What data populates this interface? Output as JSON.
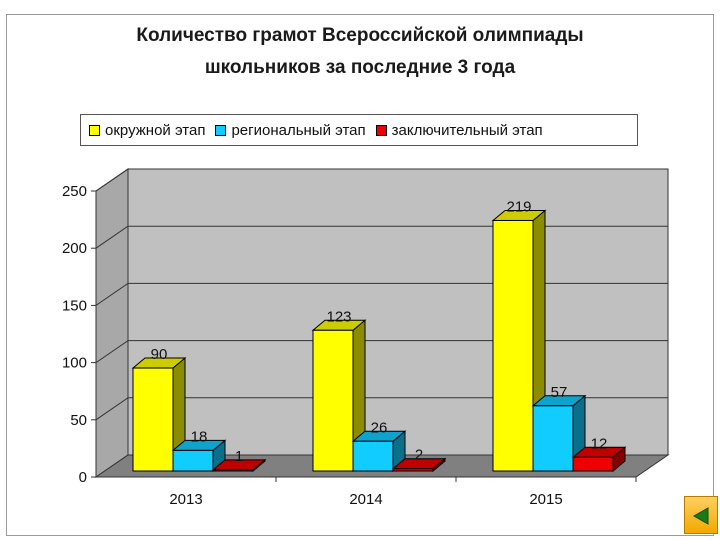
{
  "chart_data": {
    "type": "bar",
    "title": [
      "Количество грамот Всероссийской олимпиады",
      "школьников за последние 3 года"
    ],
    "categories": [
      "2013",
      "2014",
      "2015"
    ],
    "series": [
      {
        "name": "окружной этап",
        "values": [
          90,
          123,
          219
        ],
        "color": "#ffff00"
      },
      {
        "name": "региональный этап",
        "values": [
          18,
          26,
          57
        ],
        "color": "#11ccff"
      },
      {
        "name": "заключительный этап",
        "values": [
          1,
          2,
          12
        ],
        "color": "#ee0000"
      }
    ],
    "ylim": [
      0,
      250
    ],
    "yticks": [
      0,
      50,
      100,
      150,
      200,
      250
    ],
    "grid": true,
    "legend_position": "top",
    "style": "3d-clustered-column",
    "wall_color": "#c0c0c0",
    "floor_color": "#808080"
  },
  "nav": {
    "icon": "back-arrow-icon"
  }
}
